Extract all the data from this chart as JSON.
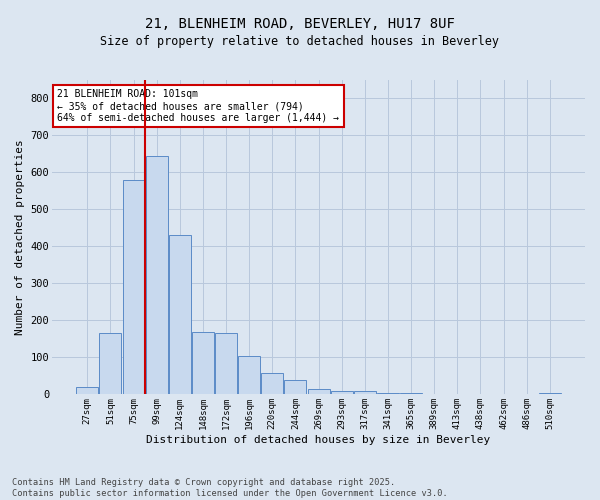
{
  "title_line1": "21, BLENHEIM ROAD, BEVERLEY, HU17 8UF",
  "title_line2": "Size of property relative to detached houses in Beverley",
  "xlabel": "Distribution of detached houses by size in Beverley",
  "ylabel": "Number of detached properties",
  "bar_labels": [
    "27sqm",
    "51sqm",
    "75sqm",
    "99sqm",
    "124sqm",
    "148sqm",
    "172sqm",
    "196sqm",
    "220sqm",
    "244sqm",
    "269sqm",
    "293sqm",
    "317sqm",
    "341sqm",
    "365sqm",
    "389sqm",
    "413sqm",
    "438sqm",
    "462sqm",
    "486sqm",
    "510sqm"
  ],
  "bar_values": [
    20,
    165,
    580,
    645,
    430,
    170,
    165,
    105,
    57,
    38,
    14,
    10,
    8,
    5,
    4,
    2,
    1,
    1,
    0,
    0,
    5
  ],
  "bar_color": "#c8d9ee",
  "bar_edge_color": "#5b8bc7",
  "vline_x_index": 3,
  "vline_color": "#cc0000",
  "annotation_text": "21 BLENHEIM ROAD: 101sqm\n← 35% of detached houses are smaller (794)\n64% of semi-detached houses are larger (1,444) →",
  "annotation_box_color": "#ffffff",
  "annotation_box_edge": "#cc0000",
  "ylim": [
    0,
    850
  ],
  "yticks": [
    0,
    100,
    200,
    300,
    400,
    500,
    600,
    700,
    800
  ],
  "grid_color": "#b8c8dc",
  "bg_color": "#dce6f1",
  "footer_line1": "Contains HM Land Registry data © Crown copyright and database right 2025.",
  "footer_line2": "Contains public sector information licensed under the Open Government Licence v3.0."
}
